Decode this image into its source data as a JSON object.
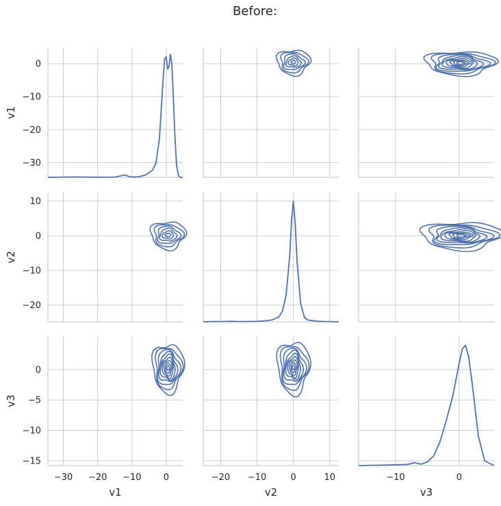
{
  "title": "Before:",
  "chart_data": {
    "type": "pairplot",
    "variables": [
      "v1",
      "v2",
      "v3"
    ],
    "axis_labels": {
      "x": [
        "v1",
        "v2",
        "v3"
      ],
      "y": [
        "v1",
        "v2",
        "v3"
      ]
    },
    "ranges": {
      "v1": [
        -34.5,
        4.8
      ],
      "v2": [
        -24.8,
        12.5
      ],
      "v3": [
        -15.8,
        5.5
      ]
    },
    "ticks": {
      "v1": [
        -30,
        -20,
        -10,
        0
      ],
      "v2": [
        -20,
        -10,
        0,
        10
      ],
      "v3": [
        -15,
        -10,
        -5,
        0
      ],
      "v3_x": [
        -10,
        0
      ]
    },
    "grid": true,
    "color": "#4c72b0",
    "diagonal_kde": {
      "v1": {
        "x": [
          -34.5,
          -30,
          -25,
          -20,
          -15,
          -12,
          -11,
          -10,
          -8,
          -6,
          -4,
          -3,
          -2,
          -1,
          -0.5,
          0,
          0.4,
          0.8,
          1.2,
          1.6,
          2,
          2.5,
          3,
          3.5,
          4,
          4.8
        ],
        "density": [
          0,
          0.002,
          0.003,
          0.001,
          0.002,
          0.02,
          0.008,
          0.003,
          0.005,
          0.02,
          0.06,
          0.12,
          0.32,
          0.78,
          0.98,
          1.0,
          0.9,
          0.92,
          1.02,
          0.95,
          0.7,
          0.35,
          0.1,
          0.02,
          0.0,
          0
        ]
      },
      "v2": {
        "x": [
          -24.8,
          -22,
          -20,
          -17,
          -15,
          -12,
          -10,
          -8,
          -6,
          -4,
          -3,
          -2,
          -1,
          -0.5,
          0,
          0.5,
          1,
          2,
          3,
          4,
          6,
          8,
          10,
          12.5
        ],
        "density": [
          0,
          0.003,
          0.002,
          0.004,
          0.002,
          0.003,
          0.004,
          0.008,
          0.015,
          0.04,
          0.09,
          0.22,
          0.55,
          0.85,
          1.0,
          0.82,
          0.5,
          0.15,
          0.04,
          0.015,
          0.006,
          0.003,
          0.002,
          0
        ]
      },
      "v3": {
        "x": [
          -15.8,
          -14,
          -12,
          -10,
          -8,
          -7,
          -6,
          -5,
          -4,
          -3,
          -2,
          -1,
          0,
          0.5,
          1,
          1.5,
          2,
          3,
          4,
          5.5
        ],
        "density": [
          0,
          0.002,
          0.004,
          0.006,
          0.01,
          0.025,
          0.012,
          0.03,
          0.08,
          0.2,
          0.38,
          0.58,
          0.85,
          0.97,
          1.0,
          0.9,
          0.7,
          0.25,
          0.04,
          0
        ]
      }
    },
    "bivariate_kde": [
      {
        "x": "v2",
        "y": "v1",
        "center": [
          0,
          0.5
        ],
        "rx": [
          4.5,
          3.6,
          2.8,
          2.0,
          1.3,
          0.6
        ],
        "ry": [
          3.8,
          3.1,
          2.4,
          1.7,
          1.1,
          0.5
        ]
      },
      {
        "x": "v3",
        "y": "v1",
        "center": [
          0.2,
          0.2
        ],
        "rx": [
          5.5,
          4.7,
          4.0,
          3.3,
          2.7,
          2.1,
          1.6,
          1.1,
          0.6
        ],
        "ry": [
          3.6,
          3.1,
          2.6,
          2.2,
          1.8,
          1.4,
          1.0,
          0.7,
          0.4
        ]
      },
      {
        "x": "v1",
        "y": "v2",
        "center": [
          0.5,
          0.2
        ],
        "rx": [
          5.0,
          4.1,
          3.2,
          2.4,
          1.6,
          0.8
        ],
        "ry": [
          4.0,
          3.2,
          2.5,
          1.8,
          1.1,
          0.5
        ]
      },
      {
        "x": "v3",
        "y": "v2",
        "center": [
          0.3,
          0.0
        ],
        "rx": [
          6.2,
          5.2,
          4.4,
          3.7,
          3.0,
          2.4,
          1.8,
          1.3,
          0.7
        ],
        "ry": [
          4.0,
          3.3,
          2.7,
          2.2,
          1.8,
          1.4,
          1.0,
          0.7,
          0.4
        ]
      },
      {
        "x": "v1",
        "y": "v3",
        "center": [
          0.5,
          0.3
        ],
        "rx": [
          4.5,
          3.8,
          3.2,
          2.6,
          2.1,
          1.6,
          1.2,
          0.8,
          0.4
        ],
        "ry": [
          4.0,
          3.4,
          2.9,
          2.4,
          2.0,
          1.6,
          1.2,
          0.8,
          0.4
        ]
      },
      {
        "x": "v2",
        "y": "v3",
        "center": [
          0.0,
          0.4
        ],
        "rx": [
          4.4,
          3.7,
          3.1,
          2.5,
          2.0,
          1.5,
          1.1,
          0.7,
          0.35
        ],
        "ry": [
          4.3,
          3.6,
          3.0,
          2.5,
          2.0,
          1.6,
          1.2,
          0.8,
          0.4
        ]
      }
    ]
  }
}
